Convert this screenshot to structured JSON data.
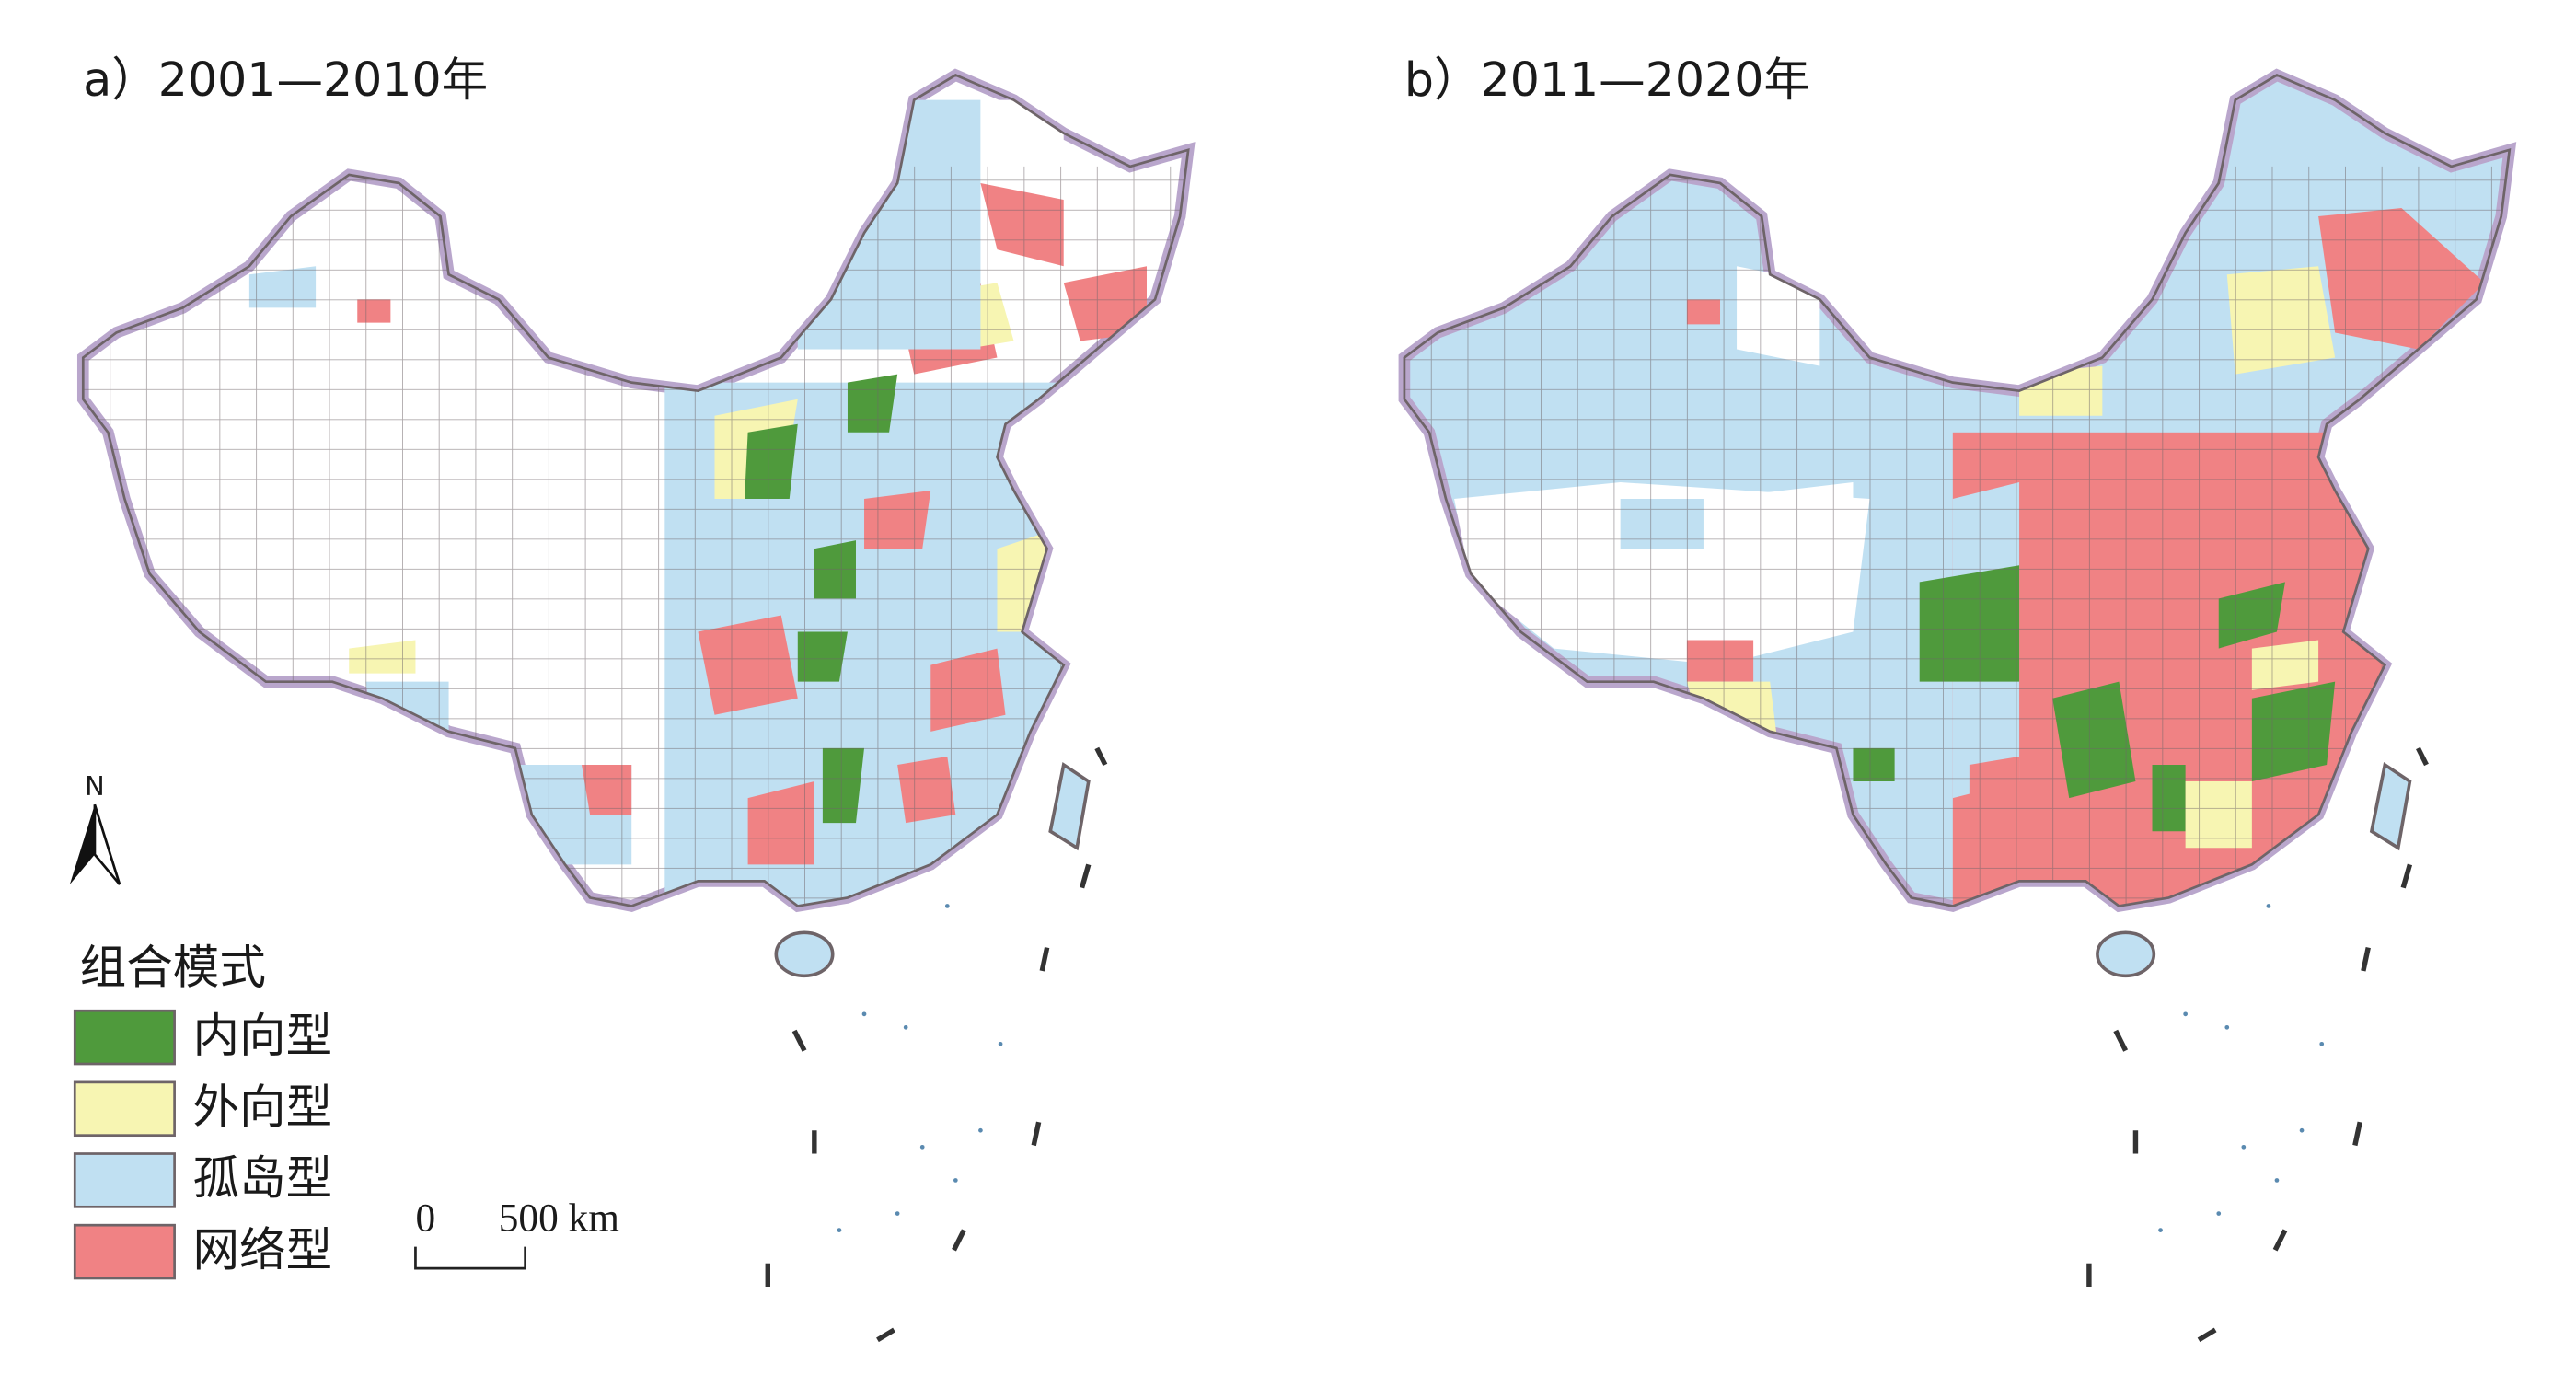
{
  "panels": [
    {
      "title": "a）2001—2010年"
    },
    {
      "title": "b）2011—2020年"
    }
  ],
  "north_arrow": "N",
  "legend": {
    "title": "组合模式",
    "items": [
      {
        "name": "内向型",
        "color": "#4f9a3c"
      },
      {
        "name": "外向型",
        "color": "#f7f5b2"
      },
      {
        "name": "孤岛型",
        "color": "#c0e0f2"
      },
      {
        "name": "网络型",
        "color": "#f08284"
      }
    ]
  },
  "scale_bar": {
    "start": "0",
    "end": "500 km"
  }
}
